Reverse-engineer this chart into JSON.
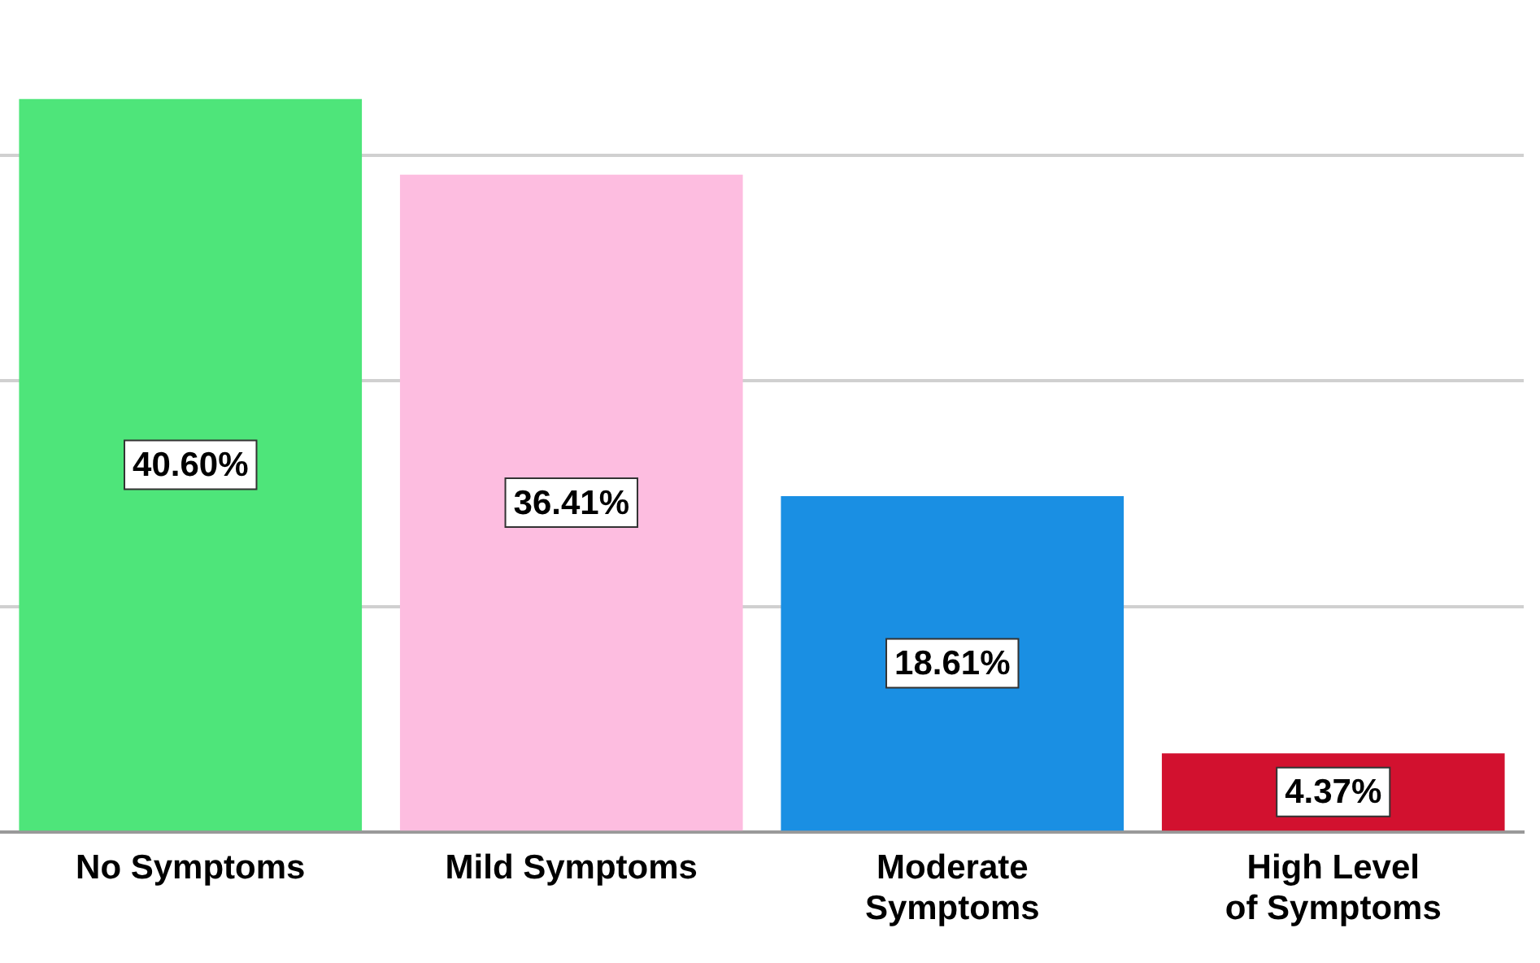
{
  "chart_data": {
    "type": "bar",
    "categories": [
      "No Symptoms",
      "Mild Symptoms",
      "Moderate Symptoms",
      "High Level of Symptoms"
    ],
    "values": [
      40.6,
      36.41,
      18.61,
      4.37
    ],
    "colors": [
      "#4ee57a",
      "#fdbde0",
      "#1a8fe3",
      "#d2112f"
    ],
    "value_labels": [
      "40.60%",
      "36.41%",
      "18.61%",
      "4.37%"
    ],
    "yticks": [
      {
        "value": 0,
        "label": null
      },
      {
        "value": 12.5,
        "label": null
      },
      {
        "value": 25,
        "label": null
      },
      {
        "value": 37.5,
        "label": null
      }
    ],
    "tick_labels": "x",
    "grid": "y",
    "legend": false
  }
}
